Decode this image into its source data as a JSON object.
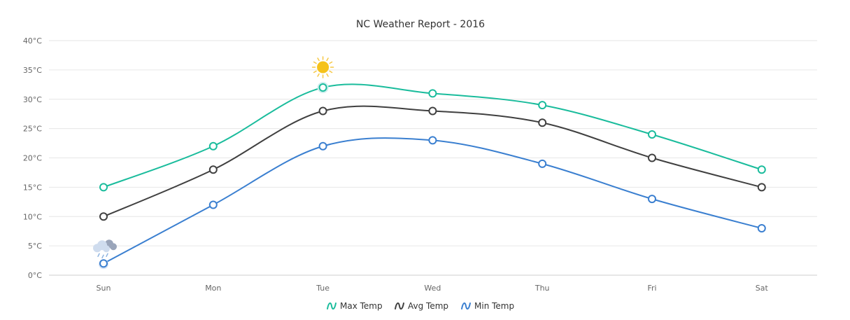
{
  "chart_data": {
    "type": "line",
    "title": "NC Weather Report - 2016",
    "categories": [
      "Sun",
      "Mon",
      "Tue",
      "Wed",
      "Thu",
      "Fri",
      "Sat"
    ],
    "ylim": [
      0,
      40
    ],
    "y_ticks": [
      0,
      5,
      10,
      15,
      20,
      25,
      30,
      35,
      40
    ],
    "y_tick_suffix": "°C",
    "grid": "horizontal",
    "legend_position": "bottom",
    "series": [
      {
        "name": "Max Temp",
        "color": "#1abc9c",
        "values": [
          15,
          22,
          32,
          31,
          29,
          24,
          18
        ]
      },
      {
        "name": "Avg Temp",
        "color": "#404040",
        "values": [
          10,
          18,
          28,
          28,
          26,
          20,
          15
        ]
      },
      {
        "name": "Min Temp",
        "color": "#3a7fd0",
        "values": [
          2,
          12,
          22,
          23,
          19,
          13,
          8
        ]
      }
    ],
    "annotations": [
      {
        "icon": "sun-icon",
        "category": "Tue",
        "series": "Max Temp"
      },
      {
        "icon": "rain-cloud-icon",
        "category": "Sun",
        "series": "Min Temp"
      }
    ]
  }
}
